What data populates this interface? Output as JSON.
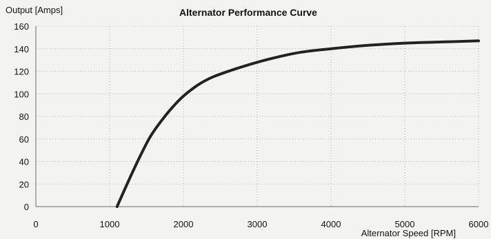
{
  "chart_data": {
    "type": "line",
    "title": "Alternator Performance Curve",
    "xlabel": "Alternator Speed [RPM]",
    "ylabel": "Output [Amps]",
    "xlim": [
      0,
      6000
    ],
    "ylim": [
      0,
      160
    ],
    "xticks": [
      0,
      1000,
      2000,
      3000,
      4000,
      5000,
      6000
    ],
    "yticks": [
      0,
      20,
      40,
      60,
      80,
      100,
      120,
      140,
      160
    ],
    "grid": true,
    "series": [
      {
        "color": "#222222",
        "x": [
          1100,
          1250,
          1400,
          1550,
          1700,
          1850,
          2000,
          2200,
          2400,
          2700,
          3000,
          3300,
          3600,
          4000,
          4500,
          5000,
          5500,
          6000
        ],
        "y": [
          0,
          22,
          43,
          62,
          76,
          88,
          98,
          108,
          115,
          122,
          128,
          133,
          137,
          140,
          143,
          145,
          146,
          147
        ]
      }
    ]
  }
}
